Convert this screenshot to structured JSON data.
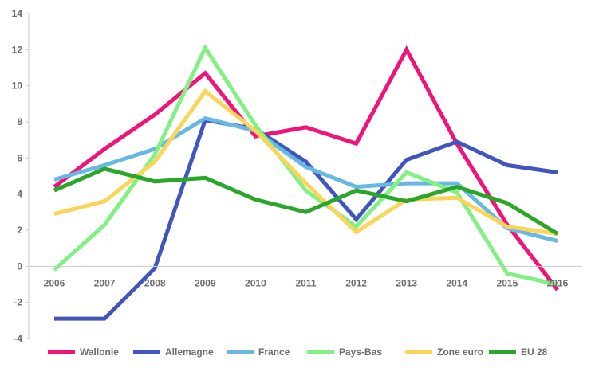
{
  "chart_data": {
    "type": "line",
    "title": "",
    "xlabel": "",
    "ylabel": "",
    "x": [
      "2006",
      "2007",
      "2008",
      "2009",
      "2010",
      "2011",
      "2012",
      "2013",
      "2014",
      "2015",
      "2016"
    ],
    "ylim": [
      -4,
      14
    ],
    "yticks": [
      "-4",
      "-2",
      "0",
      "2",
      "4",
      "6",
      "8",
      "10",
      "12",
      "14"
    ],
    "grid": false,
    "legend_position": "bottom",
    "series": [
      {
        "name": "Wallonie",
        "color": "#f0137a",
        "values": [
          4.4,
          6.5,
          8.4,
          10.7,
          7.2,
          7.7,
          6.8,
          12.0,
          6.8,
          2.3,
          -1.3
        ]
      },
      {
        "name": "Allemagne",
        "color": "#4055bd",
        "values": [
          -2.9,
          -2.9,
          -0.1,
          8.1,
          7.6,
          5.8,
          2.6,
          5.9,
          6.9,
          5.6,
          5.2
        ]
      },
      {
        "name": "France",
        "color": "#67b8e3",
        "values": [
          4.8,
          5.6,
          6.5,
          8.2,
          7.5,
          5.5,
          4.4,
          4.6,
          4.6,
          2.1,
          1.4
        ]
      },
      {
        "name": "Pays-Bas",
        "color": "#82f082",
        "values": [
          -0.2,
          2.3,
          6.2,
          12.1,
          7.8,
          4.2,
          2.2,
          5.2,
          4.1,
          -0.4,
          -1.0
        ]
      },
      {
        "name": "Zone euro",
        "color": "#fbd55a",
        "values": [
          2.9,
          3.6,
          5.8,
          9.7,
          7.5,
          4.6,
          1.9,
          3.7,
          3.8,
          2.2,
          1.8
        ]
      },
      {
        "name": "EU 28",
        "color": "#2aa62a",
        "values": [
          4.2,
          5.4,
          4.7,
          4.9,
          3.7,
          3.0,
          4.2,
          3.6,
          4.4,
          3.5,
          1.8
        ]
      }
    ]
  }
}
